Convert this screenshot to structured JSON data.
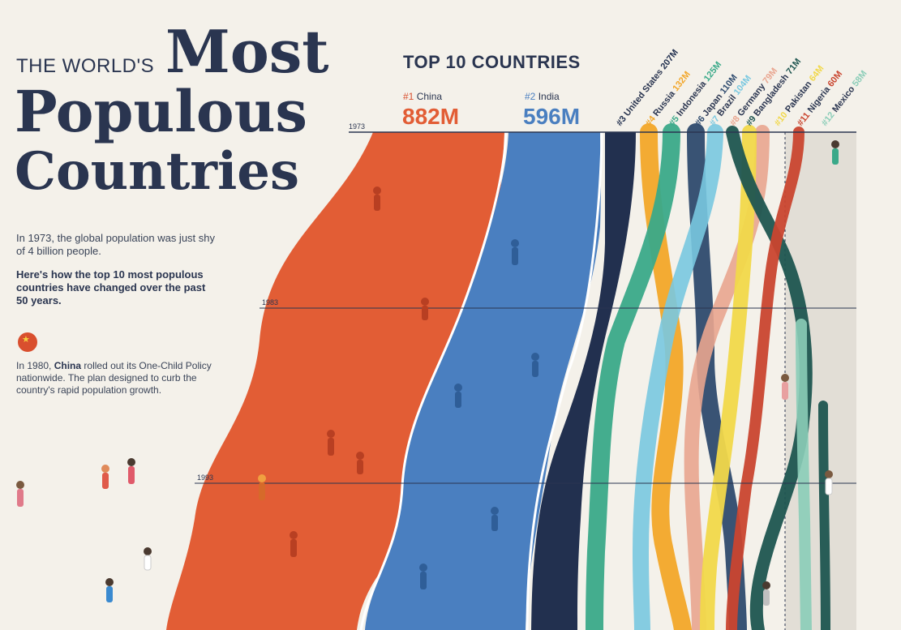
{
  "title": {
    "prefix": "THE WORLD'S",
    "line1": "Most",
    "line2": "Populous",
    "line3": "Countries"
  },
  "intro": {
    "p1": "In 1973, the global population was just shy of 4 billion people.",
    "p2": "Here's how the top 10 most populous countries have changed over the past 50 years."
  },
  "annotation": {
    "pre": "In 1980, ",
    "country": "China",
    "post": " rolled out its One-Child Policy nationwide. The plan designed to curb the country's rapid population growth."
  },
  "header": {
    "top10": "TOP 10 COUNTRIES"
  },
  "leaders": [
    {
      "rank": "#1",
      "name": "China",
      "value": "882M"
    },
    {
      "rank": "#2",
      "name": "India",
      "value": "596M"
    }
  ],
  "colors": {
    "background": "#f4f1ea",
    "china": "#e25d35",
    "india": "#4a7fc0"
  },
  "chart_data": {
    "type": "area",
    "subtype": "streamgraph",
    "years": [
      "1973",
      "1983",
      "1993"
    ],
    "series": [
      {
        "rank": "#1",
        "name": "China",
        "label_1973": "882M",
        "color": "#e25d35"
      },
      {
        "rank": "#2",
        "name": "India",
        "label_1973": "596M",
        "color": "#4a7fc0"
      },
      {
        "rank": "#3",
        "name": "United States",
        "label_1973": "207M",
        "color": "#22304f"
      },
      {
        "rank": "#4",
        "name": "Russia",
        "label_1973": "132M",
        "color": "#f2a629"
      },
      {
        "rank": "#5",
        "name": "Indonesia",
        "label_1973": "125M",
        "color": "#3aa989"
      },
      {
        "rank": "#6",
        "name": "Japan",
        "label_1973": "110M",
        "color": "#2e4a6e"
      },
      {
        "rank": "#7",
        "name": "Brazil",
        "label_1973": "104M",
        "color": "#79c8e0"
      },
      {
        "rank": "#8",
        "name": "Germany",
        "label_1973": "79M",
        "color": "#e9a58f"
      },
      {
        "rank": "#9",
        "name": "Bangladesh",
        "label_1973": "71M",
        "color": "#1e5550"
      },
      {
        "rank": "#10",
        "name": "Pakistan",
        "label_1973": "64M",
        "color": "#f1d84a"
      },
      {
        "rank": "#11",
        "name": "Nigeria",
        "label_1973": "60M",
        "color": "#c9452f"
      },
      {
        "rank": "#12",
        "name": "Mexico",
        "label_1973": "58M",
        "color": "#8bcdb8"
      }
    ]
  }
}
